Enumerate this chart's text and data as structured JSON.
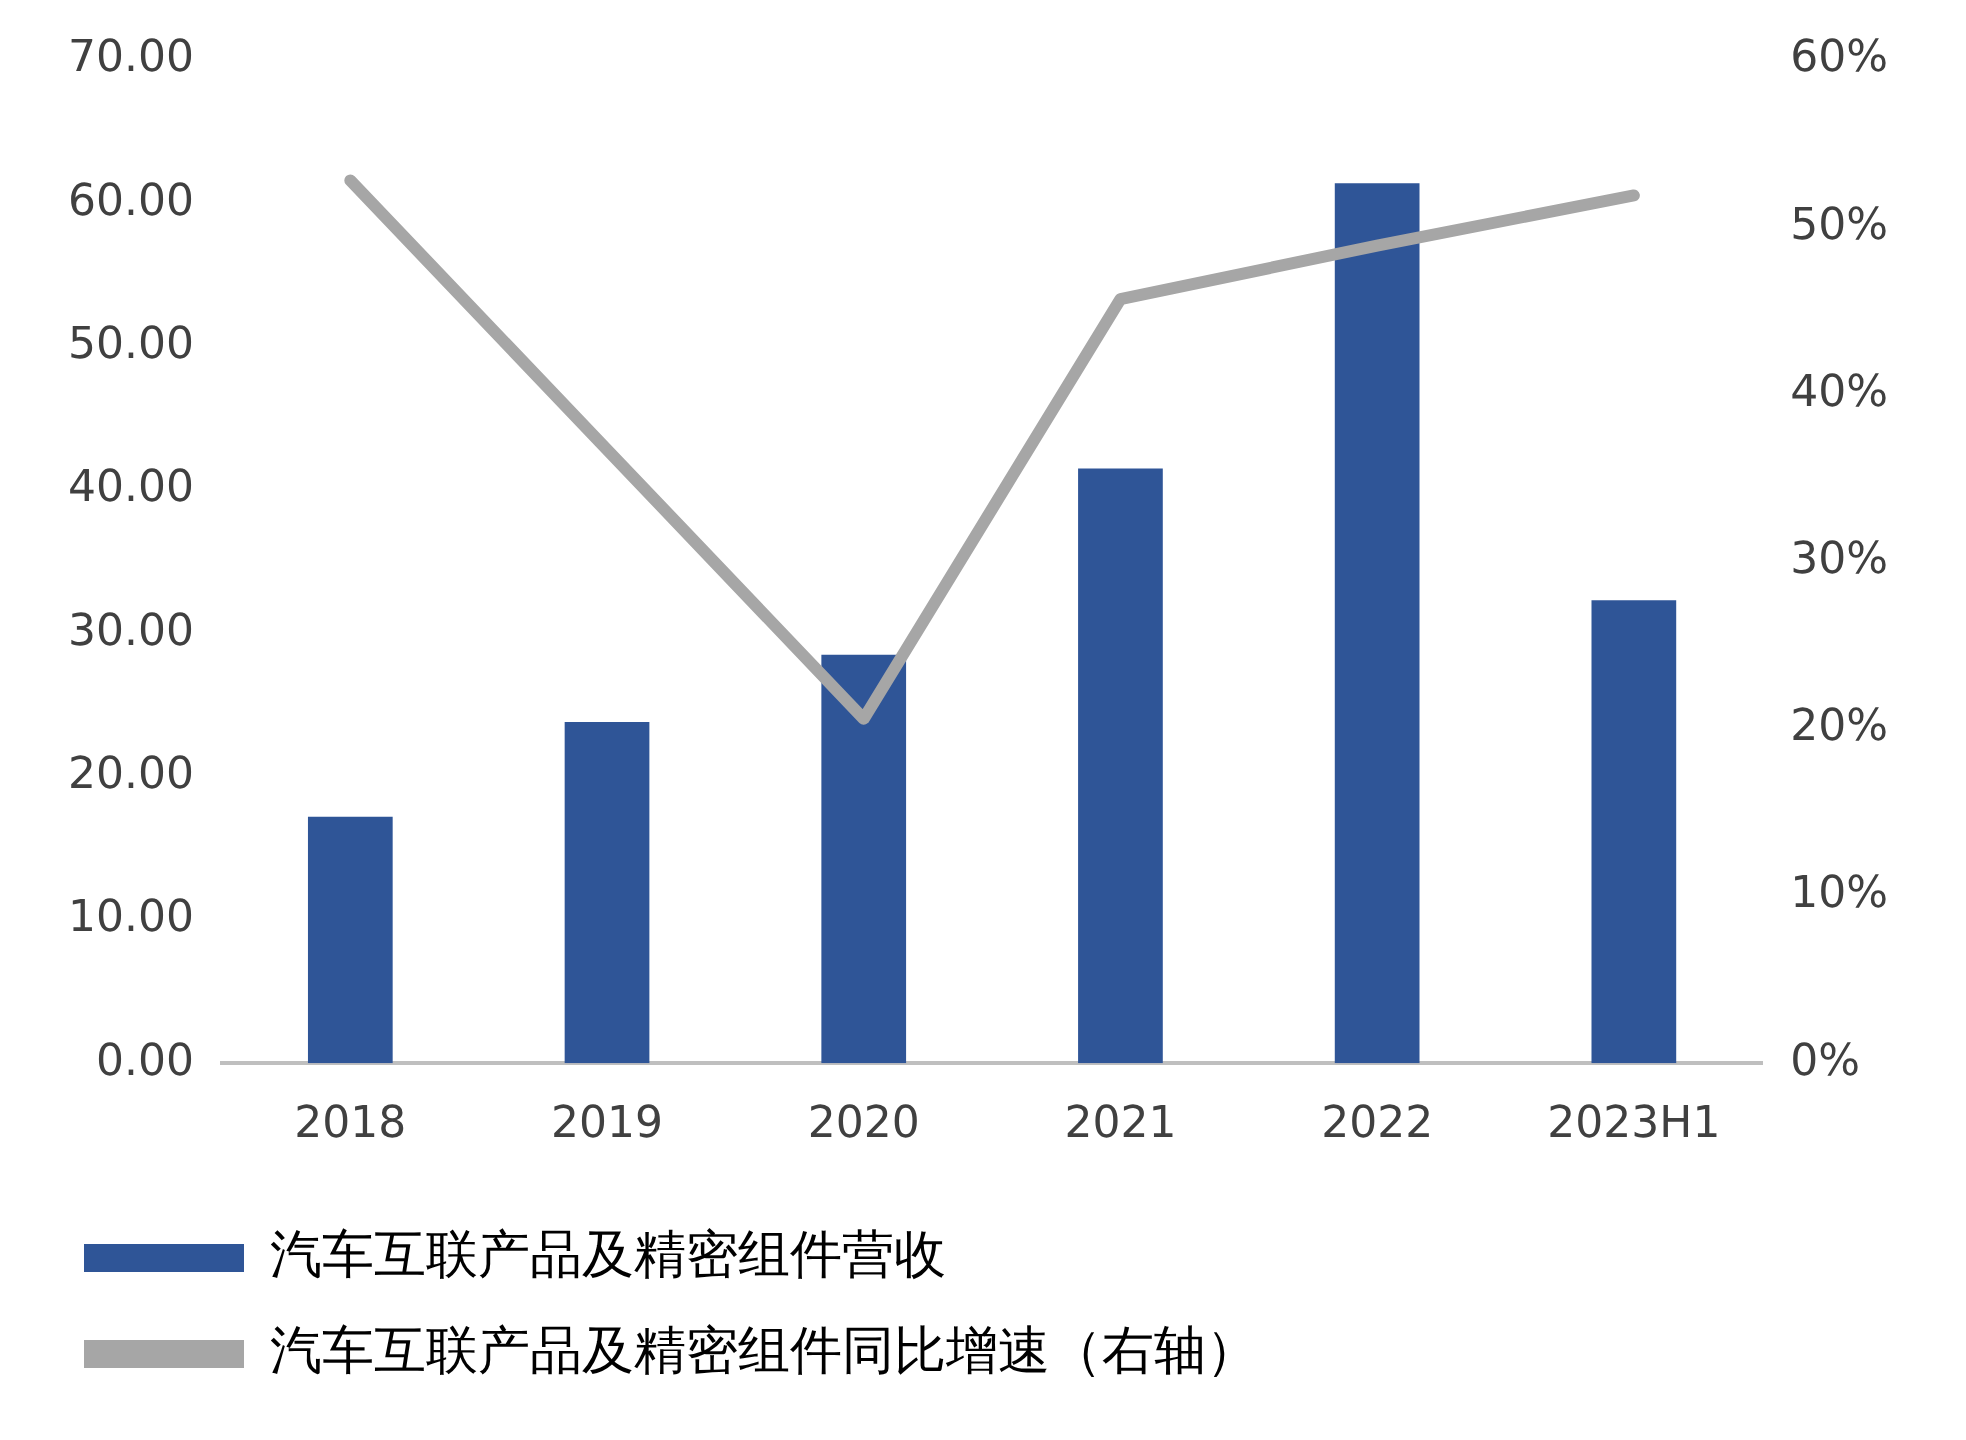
{
  "chart_data": {
    "type": "bar",
    "categories": [
      "2018",
      "2019",
      "2020",
      "2021",
      "2022",
      "2023H1"
    ],
    "series": [
      {
        "name": "汽车互联产品及精密组件营收",
        "color": "#2f5597",
        "values": [
          17.2,
          23.8,
          28.5,
          41.5,
          61.4,
          32.3
        ]
      },
      {
        "name": "汽车互联产品及精密组件同比增速（右轴）",
        "type": "line",
        "axis": "y2",
        "color": "#a6a6a6",
        "values": [
          52.8,
          36.7,
          20.6,
          45.7,
          48.9,
          51.9
        ]
      }
    ],
    "ylim": [
      0,
      70
    ],
    "yticks": [
      {
        "value": 0,
        "label": "0.00"
      },
      {
        "value": 10,
        "label": "10.00"
      },
      {
        "value": 20,
        "label": "20.00"
      },
      {
        "value": 30,
        "label": "30.00"
      },
      {
        "value": 40,
        "label": "40.00"
      },
      {
        "value": 50,
        "label": "50.00"
      },
      {
        "value": 60,
        "label": "60.00"
      },
      {
        "value": 70,
        "label": "70.00"
      }
    ],
    "y2lim": [
      0,
      60
    ],
    "y2ticks": [
      {
        "value": 0,
        "label": "0%"
      },
      {
        "value": 10,
        "label": "10%"
      },
      {
        "value": 20,
        "label": "20%"
      },
      {
        "value": 30,
        "label": "30%"
      },
      {
        "value": 40,
        "label": "40%"
      },
      {
        "value": 50,
        "label": "50%"
      },
      {
        "value": 60,
        "label": "60%"
      }
    ],
    "grid": false,
    "legend": "bottom",
    "marker": "none"
  }
}
